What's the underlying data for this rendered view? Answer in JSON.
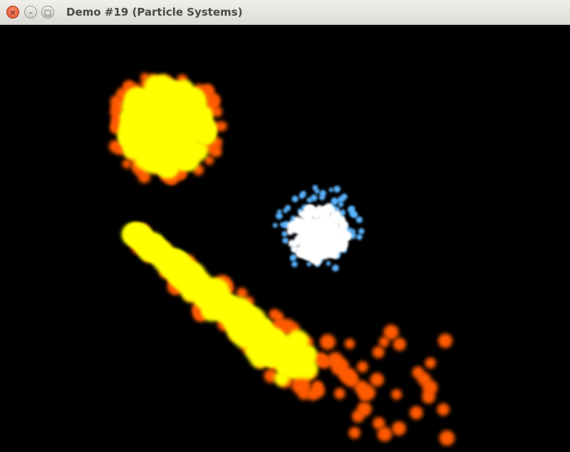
{
  "window": {
    "title": "Demo #19 (Particle Systems)",
    "buttons": {
      "close_glyph": "×",
      "minimize_glyph": "–",
      "maximize_glyph": "□"
    }
  },
  "scene": {
    "background": "#000000",
    "fire_core_color": "#ffff00",
    "fire_edge_color": "#ff5a00",
    "ice_core_color": "#ffffff",
    "ice_edge_color": "#5ab4ff"
  }
}
